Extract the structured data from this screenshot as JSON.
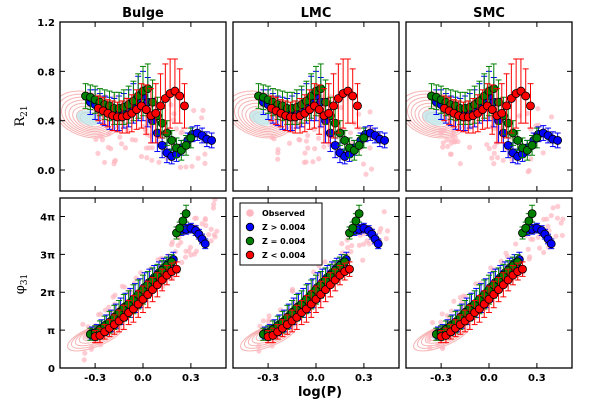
{
  "chart_data": {
    "type": "scatter",
    "title": "",
    "xlabel": "log(P)",
    "columns": [
      "Bulge",
      "LMC",
      "SMC"
    ],
    "xlim": [
      -0.52,
      0.52
    ],
    "xticks": [
      -0.3,
      0.0,
      0.3
    ],
    "xtick_labels": [
      "-0.3",
      "0.0",
      "0.3"
    ],
    "top_row": {
      "ylabel": "R_21",
      "ylabel_main": "R",
      "ylabel_sub": "21",
      "ylim": [
        -0.17,
        1.2
      ],
      "yticks": [
        0.0,
        0.4,
        0.8,
        1.2
      ],
      "ytick_labels": [
        "0.0",
        "0.4",
        "0.8",
        "1.2"
      ]
    },
    "bottom_row": {
      "ylabel": "phi_31",
      "ylabel_main": "φ",
      "ylabel_sub": "31",
      "ylim": [
        0,
        14.1
      ],
      "yticks": [
        0,
        3.1416,
        6.2832,
        9.4248,
        12.5664
      ],
      "ytick_labels": [
        "0",
        "π",
        "2π",
        "3π",
        "4π"
      ]
    },
    "legend": {
      "location": "upper-left of bottom-middle panel",
      "entries": [
        {
          "label": "Observed",
          "color": "#ffb6c1"
        },
        {
          "label": "Z > 0.004",
          "color": "#0000ff"
        },
        {
          "label": "Z = 0.004",
          "color": "#008000"
        },
        {
          "label": "Z < 0.004",
          "color": "#ff0000"
        }
      ]
    },
    "series": [
      {
        "name": "Z > 0.004",
        "color": "#0000ff",
        "r21": [
          [
            -0.33,
            0.55
          ],
          [
            -0.3,
            0.53
          ],
          [
            -0.27,
            0.5
          ],
          [
            -0.24,
            0.48
          ],
          [
            -0.21,
            0.46
          ],
          [
            -0.18,
            0.45
          ],
          [
            -0.15,
            0.46
          ],
          [
            -0.12,
            0.48
          ],
          [
            -0.09,
            0.5
          ],
          [
            -0.06,
            0.54
          ],
          [
            -0.03,
            0.58
          ],
          [
            0.0,
            0.6
          ],
          [
            0.03,
            0.55
          ],
          [
            0.06,
            0.4
          ],
          [
            0.09,
            0.3
          ],
          [
            0.12,
            0.2
          ],
          [
            0.15,
            0.14
          ],
          [
            0.18,
            0.11
          ],
          [
            0.21,
            0.13
          ],
          [
            0.24,
            0.18
          ],
          [
            0.28,
            0.24
          ],
          [
            0.31,
            0.29
          ],
          [
            0.34,
            0.3
          ],
          [
            0.37,
            0.28
          ],
          [
            0.4,
            0.25
          ],
          [
            0.43,
            0.24
          ]
        ],
        "r21_err": [
          0.1,
          0.12,
          0.12,
          0.12,
          0.13,
          0.13,
          0.14,
          0.14,
          0.15,
          0.16,
          0.18,
          0.2,
          0.2,
          0.18,
          0.15,
          0.1,
          0.08,
          0.06,
          0.06,
          0.06,
          0.06,
          0.06,
          0.06,
          0.06,
          0.06,
          0.06
        ],
        "phi31": [
          [
            -0.32,
            2.9
          ],
          [
            -0.29,
            3.0
          ],
          [
            -0.26,
            3.3
          ],
          [
            -0.23,
            3.6
          ],
          [
            -0.2,
            3.9
          ],
          [
            -0.17,
            4.3
          ],
          [
            -0.14,
            4.7
          ],
          [
            -0.11,
            5.1
          ],
          [
            -0.08,
            5.4
          ],
          [
            -0.05,
            5.8
          ],
          [
            -0.02,
            6.2
          ],
          [
            0.01,
            6.7
          ],
          [
            0.04,
            7.1
          ],
          [
            0.07,
            7.5
          ],
          [
            0.1,
            7.9
          ],
          [
            0.13,
            8.3
          ],
          [
            0.16,
            8.7
          ],
          [
            0.19,
            9.0
          ],
          [
            0.24,
            11.4
          ],
          [
            0.27,
            11.5
          ],
          [
            0.3,
            11.6
          ],
          [
            0.33,
            11.4
          ],
          [
            0.35,
            11.1
          ],
          [
            0.37,
            10.7
          ],
          [
            0.39,
            10.3
          ]
        ],
        "phi31_err": [
          0.5,
          0.6,
          0.7,
          0.8,
          0.9,
          1.0,
          1.1,
          1.1,
          1.2,
          1.2,
          1.2,
          1.2,
          1.1,
          1.0,
          0.9,
          0.8,
          0.7,
          0.6,
          0.4,
          0.4,
          0.4,
          0.4,
          0.4,
          0.4,
          0.4
        ]
      },
      {
        "name": "Z = 0.004",
        "color": "#008000",
        "r21": [
          [
            -0.36,
            0.6
          ],
          [
            -0.33,
            0.59
          ],
          [
            -0.3,
            0.57
          ],
          [
            -0.27,
            0.55
          ],
          [
            -0.24,
            0.53
          ],
          [
            -0.21,
            0.52
          ],
          [
            -0.18,
            0.5
          ],
          [
            -0.15,
            0.5
          ],
          [
            -0.12,
            0.51
          ],
          [
            -0.09,
            0.53
          ],
          [
            -0.06,
            0.56
          ],
          [
            -0.03,
            0.6
          ],
          [
            0.0,
            0.64
          ],
          [
            0.03,
            0.66
          ],
          [
            0.06,
            0.55
          ],
          [
            0.09,
            0.44
          ],
          [
            0.12,
            0.38
          ],
          [
            0.15,
            0.3
          ],
          [
            0.18,
            0.24
          ],
          [
            0.21,
            0.18
          ],
          [
            0.24,
            0.16
          ],
          [
            0.27,
            0.2
          ],
          [
            0.3,
            0.26
          ]
        ],
        "r21_err": [
          0.1,
          0.1,
          0.11,
          0.11,
          0.12,
          0.12,
          0.13,
          0.13,
          0.14,
          0.15,
          0.16,
          0.18,
          0.2,
          0.2,
          0.18,
          0.15,
          0.12,
          0.1,
          0.08,
          0.08,
          0.08,
          0.08,
          0.08
        ],
        "phi31": [
          [
            -0.33,
            2.8
          ],
          [
            -0.3,
            2.9
          ],
          [
            -0.27,
            3.2
          ],
          [
            -0.24,
            3.5
          ],
          [
            -0.21,
            3.8
          ],
          [
            -0.18,
            4.2
          ],
          [
            -0.15,
            4.6
          ],
          [
            -0.12,
            5.0
          ],
          [
            -0.09,
            5.3
          ],
          [
            -0.06,
            5.7
          ],
          [
            -0.03,
            6.1
          ],
          [
            0.0,
            6.5
          ],
          [
            0.03,
            6.9
          ],
          [
            0.06,
            7.3
          ],
          [
            0.09,
            7.7
          ],
          [
            0.12,
            8.1
          ],
          [
            0.15,
            8.5
          ],
          [
            0.18,
            8.8
          ],
          [
            0.21,
            11.2
          ],
          [
            0.23,
            11.6
          ],
          [
            0.25,
            12.2
          ],
          [
            0.27,
            12.8
          ]
        ],
        "phi31_err": [
          0.5,
          0.6,
          0.7,
          0.8,
          0.9,
          1.0,
          1.0,
          1.1,
          1.1,
          1.2,
          1.2,
          1.2,
          1.1,
          1.0,
          0.9,
          0.8,
          0.7,
          0.6,
          0.5,
          0.5,
          0.6,
          0.7
        ]
      },
      {
        "name": "Z < 0.004",
        "color": "#ff0000",
        "r21": [
          [
            -0.28,
            0.5
          ],
          [
            -0.25,
            0.48
          ],
          [
            -0.22,
            0.46
          ],
          [
            -0.19,
            0.44
          ],
          [
            -0.16,
            0.43
          ],
          [
            -0.13,
            0.43
          ],
          [
            -0.1,
            0.44
          ],
          [
            -0.07,
            0.46
          ],
          [
            -0.04,
            0.49
          ],
          [
            -0.01,
            0.52
          ],
          [
            0.02,
            0.49
          ],
          [
            0.05,
            0.44
          ],
          [
            0.08,
            0.46
          ],
          [
            0.11,
            0.52
          ],
          [
            0.14,
            0.58
          ],
          [
            0.17,
            0.62
          ],
          [
            0.2,
            0.64
          ],
          [
            0.23,
            0.6
          ],
          [
            0.26,
            0.52
          ]
        ],
        "r21_err": [
          0.1,
          0.11,
          0.11,
          0.12,
          0.12,
          0.13,
          0.14,
          0.15,
          0.16,
          0.18,
          0.2,
          0.22,
          0.24,
          0.26,
          0.28,
          0.28,
          0.26,
          0.22,
          0.18
        ],
        "phi31": [
          [
            -0.3,
            2.6
          ],
          [
            -0.27,
            2.7
          ],
          [
            -0.24,
            3.0
          ],
          [
            -0.21,
            3.3
          ],
          [
            -0.18,
            3.6
          ],
          [
            -0.15,
            3.9
          ],
          [
            -0.12,
            4.2
          ],
          [
            -0.09,
            4.6
          ],
          [
            -0.06,
            4.9
          ],
          [
            -0.03,
            5.3
          ],
          [
            0.0,
            5.7
          ],
          [
            0.03,
            6.1
          ],
          [
            0.06,
            6.5
          ],
          [
            0.09,
            6.9
          ],
          [
            0.12,
            7.3
          ],
          [
            0.15,
            7.7
          ],
          [
            0.18,
            8.0
          ],
          [
            0.21,
            8.2
          ]
        ],
        "phi31_err": [
          0.5,
          0.6,
          0.6,
          0.7,
          0.8,
          0.9,
          1.0,
          1.0,
          1.1,
          1.1,
          1.1,
          1.1,
          1.0,
          1.0,
          0.9,
          0.8,
          0.7,
          0.6
        ]
      }
    ],
    "observed": {
      "name": "Observed",
      "color": "#ffb6c1",
      "r21_density_center": [
        -0.35,
        0.45
      ],
      "phi31_density_center": [
        -0.32,
        2.5
      ]
    }
  }
}
